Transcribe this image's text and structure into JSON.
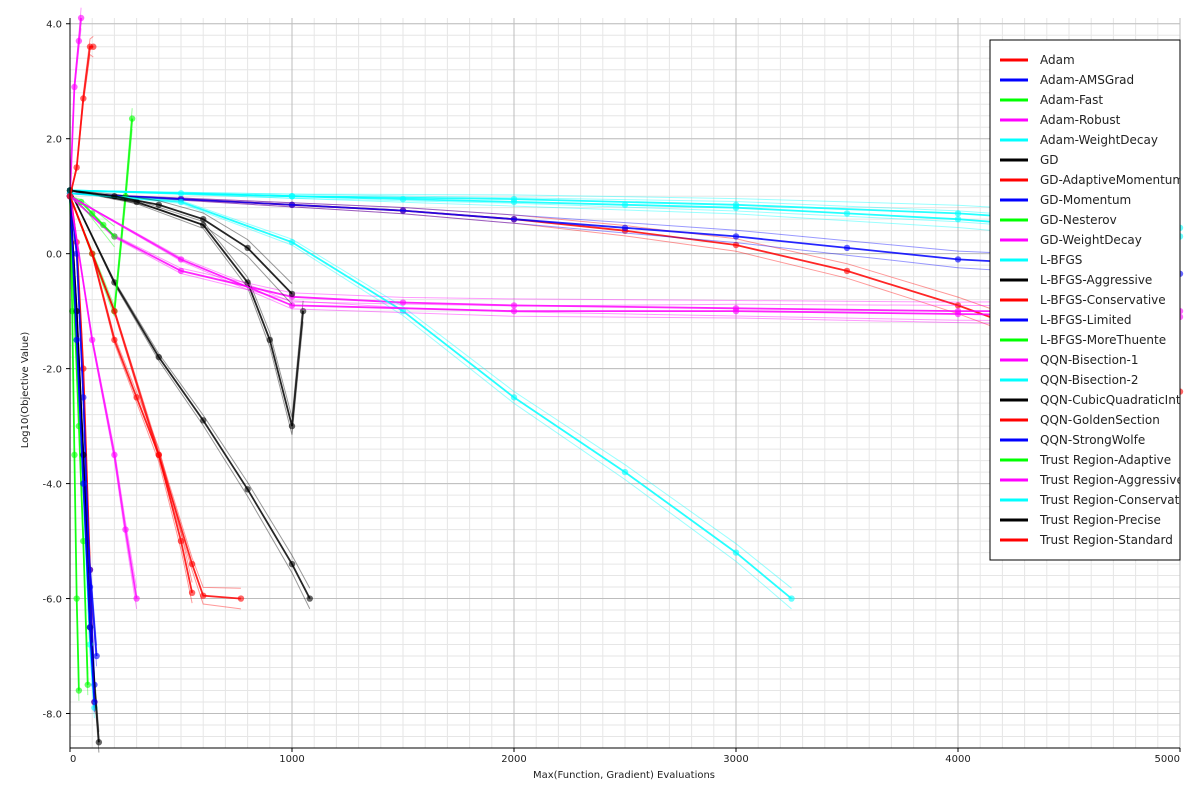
{
  "chart_data": {
    "type": "line",
    "title": "",
    "xlabel": "Max(Function, Gradient) Evaluations",
    "ylabel": "Log10(Objective Value)",
    "xlim": [
      0,
      5000
    ],
    "ylim": [
      -8.6,
      4.1
    ],
    "x_ticks": [
      0,
      1000,
      2000,
      3000,
      4000,
      5000
    ],
    "x_tick_labels": [
      "0",
      "1000",
      "2000",
      "3000",
      "4000",
      "5000"
    ],
    "y_ticks": [
      -8,
      -6,
      -4,
      -2,
      0,
      2,
      4
    ],
    "y_tick_labels": [
      "-8.0",
      "-6.0",
      "-4.0",
      "-2.0",
      "0.0",
      "2.0",
      "4.0"
    ],
    "grid": true,
    "legend_position": "top-right",
    "series": [
      {
        "name": "Adam",
        "color": "#ff0000",
        "x": [
          0,
          30,
          60,
          90,
          110
        ],
        "y": [
          1.1,
          0.2,
          -2.0,
          -5.5,
          -7.8
        ]
      },
      {
        "name": "Adam-AMSGrad",
        "color": "#0000ff",
        "x": [
          0,
          30,
          60,
          90,
          110
        ],
        "y": [
          1.0,
          0.0,
          -2.5,
          -5.8,
          -7.5
        ]
      },
      {
        "name": "Adam-Fast",
        "color": "#00ff00",
        "x": [
          0,
          10,
          20,
          30,
          40
        ],
        "y": [
          1.0,
          -1.0,
          -3.5,
          -6.0,
          -7.6
        ]
      },
      {
        "name": "Adam-Robust",
        "color": "#ff00ff",
        "x": [
          0,
          20,
          40,
          50
        ],
        "y": [
          1.0,
          2.9,
          3.7,
          4.1
        ]
      },
      {
        "name": "Adam-WeightDecay",
        "color": "#00ffff",
        "x": [
          0,
          30,
          60,
          90,
          110
        ],
        "y": [
          1.0,
          -1.5,
          -4.0,
          -6.8,
          -7.9
        ]
      },
      {
        "name": "GD",
        "color": "#000000",
        "x": [
          0,
          200,
          400,
          600,
          800,
          1000,
          1080
        ],
        "y": [
          1.1,
          -0.5,
          -1.8,
          -2.9,
          -4.1,
          -5.4,
          -6.0
        ]
      },
      {
        "name": "GD-AdaptiveMomentum",
        "color": "#ff0000",
        "x": [
          0,
          500,
          1000,
          1500,
          2000,
          2500,
          3000,
          3500,
          4000,
          4500,
          5000
        ],
        "y": [
          1.05,
          0.95,
          0.85,
          0.75,
          0.6,
          0.4,
          0.15,
          -0.3,
          -0.9,
          -1.6,
          -2.4
        ]
      },
      {
        "name": "GD-Momentum",
        "color": "#0000ff",
        "x": [
          0,
          500,
          1000,
          1500,
          2000,
          2500,
          3000,
          3500,
          4000,
          4500,
          5000
        ],
        "y": [
          1.05,
          0.95,
          0.85,
          0.75,
          0.6,
          0.45,
          0.3,
          0.1,
          -0.1,
          -0.2,
          -0.35
        ]
      },
      {
        "name": "GD-Nesterov",
        "color": "#00ff00",
        "x": [
          0,
          100,
          200,
          250,
          280
        ],
        "y": [
          1.0,
          0.0,
          -1.0,
          1.0,
          2.35
        ]
      },
      {
        "name": "GD-WeightDecay",
        "color": "#ff00ff",
        "x": [
          0,
          200,
          500,
          1000,
          1500,
          2000,
          3000,
          4000,
          5000
        ],
        "y": [
          1.0,
          0.3,
          -0.3,
          -0.75,
          -0.85,
          -0.9,
          -0.95,
          -1.0,
          -1.0
        ]
      },
      {
        "name": "L-BFGS",
        "color": "#00ffff",
        "x": [
          0,
          500,
          1000,
          1500,
          2000,
          2500,
          3000,
          3500,
          4000,
          4500,
          5000
        ],
        "y": [
          1.1,
          1.05,
          1.0,
          0.95,
          0.9,
          0.85,
          0.8,
          0.7,
          0.6,
          0.45,
          0.3
        ]
      },
      {
        "name": "L-BFGS-Aggressive",
        "color": "#000000",
        "x": [
          0,
          300,
          600,
          800,
          900,
          1000,
          1050
        ],
        "y": [
          1.1,
          0.9,
          0.5,
          -0.5,
          -1.5,
          -3.0,
          -1.0
        ]
      },
      {
        "name": "L-BFGS-Conservative",
        "color": "#ff0000",
        "x": [
          0,
          100,
          200,
          300,
          400,
          500,
          550
        ],
        "y": [
          1.0,
          0.0,
          -1.5,
          -2.5,
          -3.5,
          -5.0,
          -5.9
        ]
      },
      {
        "name": "L-BFGS-Limited",
        "color": "#0000ff",
        "x": [
          0,
          30,
          60,
          90,
          120
        ],
        "y": [
          1.0,
          -1.0,
          -3.5,
          -5.5,
          -7.0
        ]
      },
      {
        "name": "L-BFGS-MoreThuente",
        "color": "#00ff00",
        "x": [
          0,
          20,
          40,
          60,
          80
        ],
        "y": [
          1.0,
          -1.0,
          -3.0,
          -5.0,
          -7.5
        ]
      },
      {
        "name": "QQN-Bisection-1",
        "color": "#ff00ff",
        "x": [
          0,
          100,
          200,
          250,
          300
        ],
        "y": [
          1.0,
          -1.5,
          -3.5,
          -4.8,
          -6.0
        ]
      },
      {
        "name": "QQN-Bisection-2",
        "color": "#00ffff",
        "x": [
          0,
          500,
          1000,
          1500,
          2000,
          2500,
          3000,
          3250
        ],
        "y": [
          1.05,
          0.9,
          0.2,
          -1.0,
          -2.5,
          -3.8,
          -5.2,
          -6.0
        ]
      },
      {
        "name": "QQN-CubicQuadraticInterpolation",
        "color": "#000000",
        "x": [
          0,
          30,
          60,
          90,
          130
        ],
        "y": [
          1.0,
          -1.0,
          -3.5,
          -6.5,
          -8.5
        ]
      },
      {
        "name": "QQN-GoldenSection",
        "color": "#ff0000",
        "x": [
          0,
          200,
          400,
          550,
          600,
          770
        ],
        "y": [
          1.0,
          -1.0,
          -3.5,
          -5.4,
          -5.95,
          -6.0
        ]
      },
      {
        "name": "QQN-StrongWolfe",
        "color": "#0000ff",
        "x": [
          0,
          30,
          60,
          90,
          110
        ],
        "y": [
          1.0,
          -1.5,
          -4.0,
          -6.5,
          -7.8
        ]
      },
      {
        "name": "Trust Region-Adaptive",
        "color": "#00ff00",
        "x": [
          0,
          50,
          100,
          150,
          200
        ],
        "y": [
          1.0,
          0.9,
          0.7,
          0.5,
          0.3
        ]
      },
      {
        "name": "Trust Region-Aggressive",
        "color": "#ff00ff",
        "x": [
          0,
          500,
          1000,
          2000,
          3000,
          4000,
          5000
        ],
        "y": [
          1.0,
          -0.1,
          -0.9,
          -1.0,
          -1.0,
          -1.05,
          -1.1
        ]
      },
      {
        "name": "Trust Region-Conservative",
        "color": "#00ffff",
        "x": [
          0,
          1000,
          2000,
          3000,
          4000,
          5000
        ],
        "y": [
          1.1,
          1.0,
          0.95,
          0.85,
          0.7,
          0.45
        ]
      },
      {
        "name": "Trust Region-Precise",
        "color": "#000000",
        "x": [
          0,
          200,
          400,
          600,
          800,
          1000
        ],
        "y": [
          1.1,
          1.0,
          0.85,
          0.6,
          0.1,
          -0.7
        ]
      },
      {
        "name": "Trust Region-Standard",
        "color": "#ff0000",
        "x": [
          0,
          30,
          60,
          90,
          105
        ],
        "y": [
          1.0,
          1.5,
          2.7,
          3.6,
          3.6
        ]
      }
    ]
  }
}
